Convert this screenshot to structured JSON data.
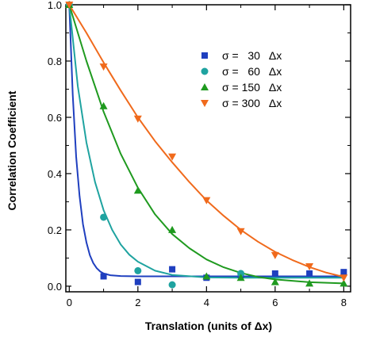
{
  "chart_data": {
    "type": "scatter",
    "xlabel": "Translation (units of Δx)",
    "ylabel": "Correlation Coefficient",
    "xlim": [
      -0.1,
      8.2
    ],
    "ylim": [
      -0.02,
      1.0
    ],
    "x_ticks": [
      0,
      2,
      4,
      6,
      8
    ],
    "y_ticks": [
      0.0,
      0.2,
      0.4,
      0.6,
      0.8,
      1.0
    ],
    "x_tick_labels": [
      "0",
      "2",
      "4",
      "6",
      "8"
    ],
    "y_tick_labels": [
      "0.0",
      "0.2",
      "0.4",
      "0.6",
      "0.8",
      "1.0"
    ],
    "grid": false,
    "legend_position": "top-right",
    "series": [
      {
        "name": "σ =   30   Δx",
        "marker": "square",
        "color": "#1f3fbf",
        "points": [
          [
            0,
            1.0
          ],
          [
            1,
            0.035
          ],
          [
            2,
            0.015
          ],
          [
            3,
            0.06
          ],
          [
            4,
            0.03
          ],
          [
            5,
            0.04
          ],
          [
            6,
            0.045
          ],
          [
            7,
            0.045
          ],
          [
            8,
            0.05
          ]
        ],
        "fit": {
          "x": [
            0,
            0.1,
            0.2,
            0.3,
            0.4,
            0.5,
            0.6,
            0.7,
            0.8,
            0.9,
            1.0,
            1.2,
            1.5,
            2,
            3,
            4,
            5,
            6,
            7,
            8
          ],
          "y": [
            1.0,
            0.68,
            0.46,
            0.32,
            0.22,
            0.155,
            0.11,
            0.082,
            0.064,
            0.052,
            0.045,
            0.039,
            0.036,
            0.035,
            0.035,
            0.035,
            0.035,
            0.035,
            0.035,
            0.035
          ]
        }
      },
      {
        "name": "σ =   60   Δx",
        "marker": "circle",
        "color": "#1fa3a0",
        "points": [
          [
            0,
            1.0
          ],
          [
            1,
            0.245
          ],
          [
            2,
            0.055
          ],
          [
            3,
            0.005
          ],
          [
            5,
            0.045
          ]
        ],
        "fit": {
          "x": [
            0,
            0.25,
            0.5,
            0.75,
            1.0,
            1.25,
            1.5,
            1.75,
            2.0,
            2.5,
            3,
            4,
            5,
            6,
            7,
            8
          ],
          "y": [
            1.0,
            0.71,
            0.51,
            0.37,
            0.27,
            0.2,
            0.148,
            0.112,
            0.087,
            0.055,
            0.04,
            0.031,
            0.03,
            0.03,
            0.03,
            0.03
          ]
        }
      },
      {
        "name": "σ = 150   Δx",
        "marker": "triangle-up",
        "color": "#1f9a1f",
        "points": [
          [
            0,
            1.0
          ],
          [
            1,
            0.64
          ],
          [
            2,
            0.34
          ],
          [
            3,
            0.2
          ],
          [
            4,
            0.035
          ],
          [
            5,
            0.03
          ],
          [
            6,
            0.015
          ],
          [
            7,
            0.01
          ],
          [
            8,
            0.01
          ]
        ],
        "fit": {
          "x": [
            0,
            0.5,
            1,
            1.5,
            2,
            2.5,
            3,
            3.5,
            4,
            4.5,
            5,
            5.5,
            6,
            7,
            8
          ],
          "y": [
            1.0,
            0.8,
            0.62,
            0.47,
            0.35,
            0.255,
            0.185,
            0.135,
            0.095,
            0.067,
            0.047,
            0.033,
            0.024,
            0.014,
            0.01
          ]
        }
      },
      {
        "name": "σ = 300   Δx",
        "marker": "triangle-down",
        "color": "#f06a1c",
        "points": [
          [
            0,
            1.0
          ],
          [
            1,
            0.78
          ],
          [
            2,
            0.595
          ],
          [
            3,
            0.46
          ],
          [
            4,
            0.305
          ],
          [
            5,
            0.195
          ],
          [
            6,
            0.11
          ],
          [
            7,
            0.07
          ],
          [
            8,
            0.03
          ]
        ],
        "fit": {
          "x": [
            0,
            0.5,
            1,
            1.5,
            2,
            2.5,
            3,
            3.5,
            4,
            4.5,
            5,
            5.5,
            6,
            6.5,
            7,
            7.5,
            8
          ],
          "y": [
            1.0,
            0.9,
            0.795,
            0.695,
            0.6,
            0.515,
            0.44,
            0.37,
            0.305,
            0.25,
            0.2,
            0.158,
            0.122,
            0.093,
            0.068,
            0.048,
            0.033
          ]
        }
      }
    ]
  }
}
